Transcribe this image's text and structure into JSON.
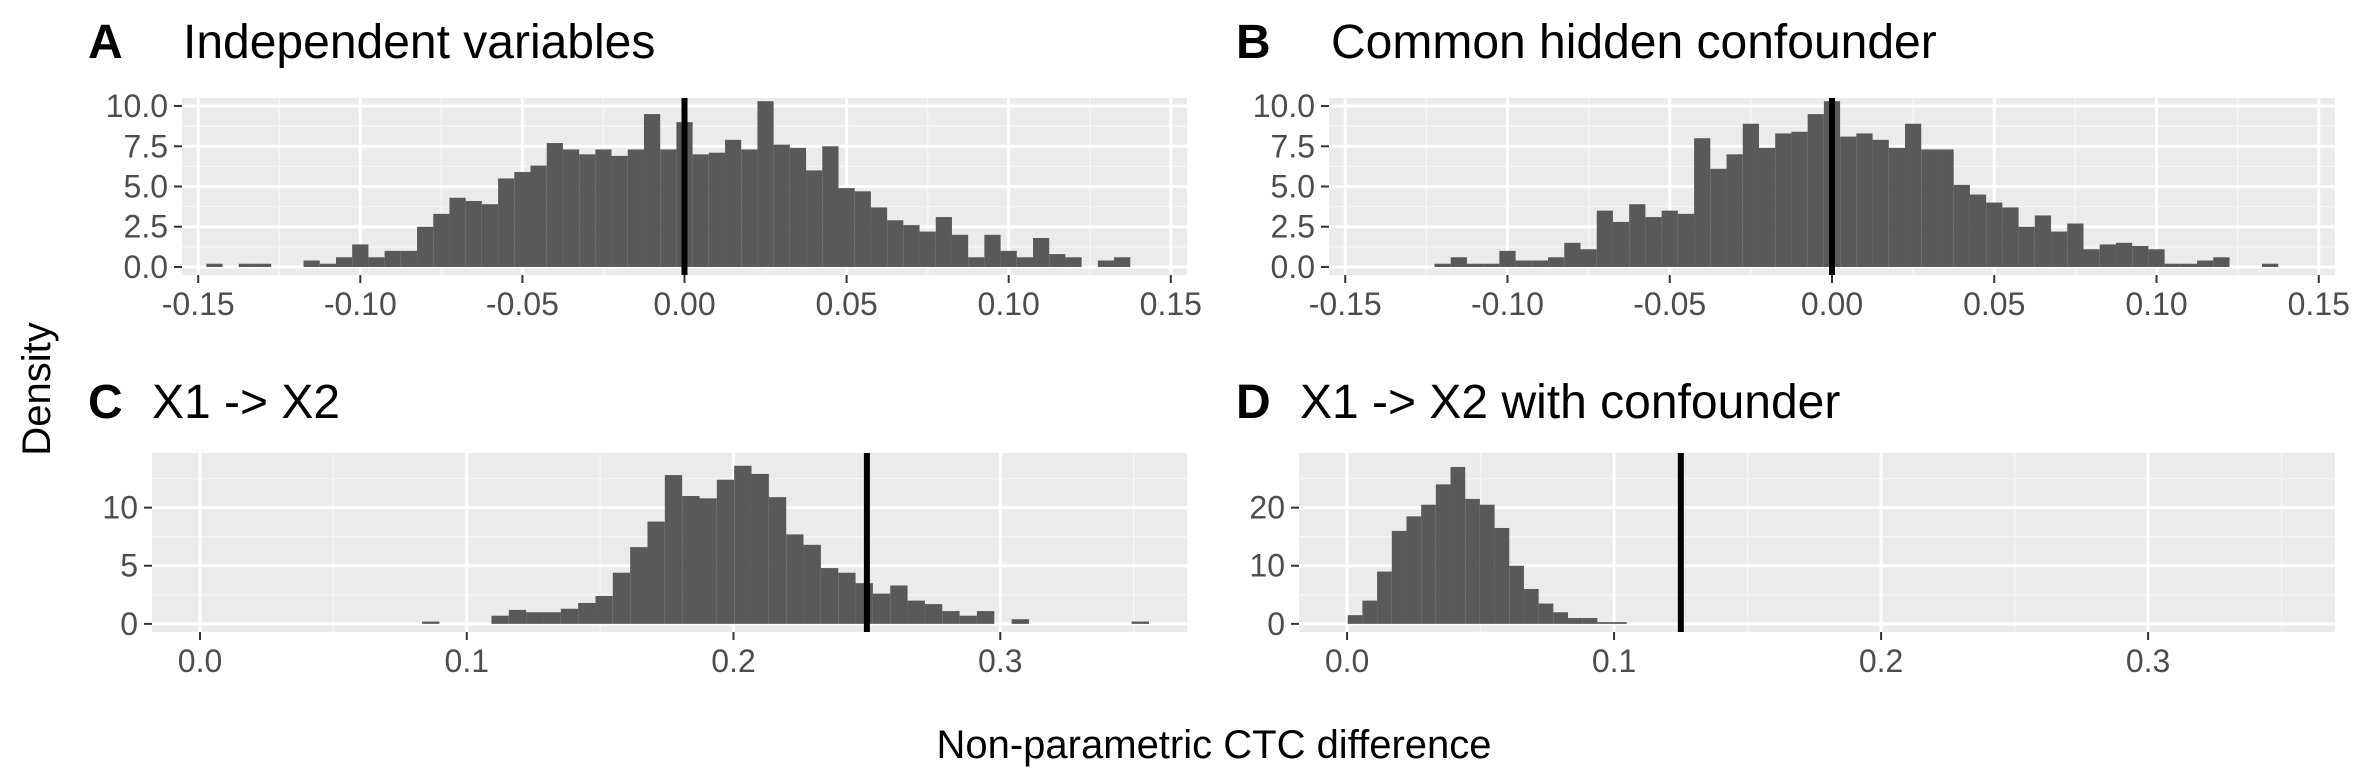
{
  "figure": {
    "y_axis_title": "Density",
    "x_axis_title": "Non-parametric CTC difference"
  },
  "chart_data": [
    {
      "type": "bar",
      "panel": "A",
      "title": "Independent variables",
      "bin_width": 0.005,
      "reference_line": 0.0,
      "xlim": [
        -0.155,
        0.155
      ],
      "ylim": [
        -0.5,
        10.5
      ],
      "xticks": [
        -0.15,
        -0.1,
        -0.05,
        0.0,
        0.05,
        0.1,
        0.15
      ],
      "xtick_labels": [
        "-0.15",
        "-0.10",
        "-0.05",
        "0.00",
        "0.05",
        "0.10",
        "0.15"
      ],
      "yticks": [
        0,
        2.5,
        5,
        7.5,
        10
      ],
      "ytick_labels": [
        "0.0",
        "2.5",
        "5.0",
        "7.5",
        "10.0"
      ],
      "x": [
        -0.145,
        -0.14,
        -0.135,
        -0.13,
        -0.125,
        -0.12,
        -0.115,
        -0.11,
        -0.105,
        -0.1,
        -0.095,
        -0.09,
        -0.085,
        -0.08,
        -0.075,
        -0.07,
        -0.065,
        -0.06,
        -0.055,
        -0.05,
        -0.045,
        -0.04,
        -0.035,
        -0.03,
        -0.025,
        -0.02,
        -0.015,
        -0.01,
        -0.005,
        0.0,
        0.005,
        0.01,
        0.015,
        0.02,
        0.025,
        0.03,
        0.035,
        0.04,
        0.045,
        0.05,
        0.055,
        0.06,
        0.065,
        0.07,
        0.075,
        0.08,
        0.085,
        0.09,
        0.095,
        0.1,
        0.105,
        0.11,
        0.115,
        0.12,
        0.125,
        0.13,
        0.135
      ],
      "values": [
        0.2,
        0,
        0.2,
        0.2,
        0,
        0,
        0.4,
        0.2,
        0.6,
        1.4,
        0.6,
        1.0,
        1.0,
        2.5,
        3.3,
        4.3,
        4.1,
        3.9,
        5.5,
        5.9,
        6.3,
        7.7,
        7.3,
        7.0,
        7.3,
        6.9,
        7.3,
        9.5,
        7.3,
        9.0,
        7.0,
        7.1,
        7.9,
        7.3,
        10.3,
        7.6,
        7.4,
        6.0,
        7.5,
        4.9,
        4.7,
        3.7,
        2.9,
        2.6,
        2.2,
        3.1,
        2.0,
        0.6,
        2.0,
        1.0,
        0.6,
        1.8,
        0.8,
        0.6,
        0,
        0.4,
        0.6
      ]
    },
    {
      "type": "bar",
      "panel": "B",
      "title": "Common hidden confounder",
      "bin_width": 0.005,
      "reference_line": 0.0,
      "xlim": [
        -0.155,
        0.155
      ],
      "ylim": [
        -0.5,
        10.5
      ],
      "xticks": [
        -0.15,
        -0.1,
        -0.05,
        0.0,
        0.05,
        0.1,
        0.15
      ],
      "xtick_labels": [
        "-0.15",
        "-0.10",
        "-0.05",
        "0.00",
        "0.05",
        "0.10",
        "0.15"
      ],
      "yticks": [
        0,
        2.5,
        5,
        7.5,
        10
      ],
      "ytick_labels": [
        "0.0",
        "2.5",
        "5.0",
        "7.5",
        "10.0"
      ],
      "x": [
        -0.12,
        -0.115,
        -0.11,
        -0.105,
        -0.1,
        -0.095,
        -0.09,
        -0.085,
        -0.08,
        -0.075,
        -0.07,
        -0.065,
        -0.06,
        -0.055,
        -0.05,
        -0.045,
        -0.04,
        -0.035,
        -0.03,
        -0.025,
        -0.02,
        -0.015,
        -0.01,
        -0.005,
        0.0,
        0.005,
        0.01,
        0.015,
        0.02,
        0.025,
        0.03,
        0.035,
        0.04,
        0.045,
        0.05,
        0.055,
        0.06,
        0.065,
        0.07,
        0.075,
        0.08,
        0.085,
        0.09,
        0.095,
        0.1,
        0.105,
        0.11,
        0.115,
        0.12,
        0.125,
        0.13,
        0.135
      ],
      "values": [
        0.2,
        0.6,
        0.2,
        0.2,
        1.0,
        0.4,
        0.4,
        0.6,
        1.5,
        1.1,
        3.5,
        2.8,
        3.9,
        3.1,
        3.5,
        3.3,
        8.0,
        6.1,
        7.0,
        8.9,
        7.4,
        8.3,
        8.4,
        9.5,
        10.3,
        8.1,
        8.3,
        7.9,
        7.4,
        8.9,
        7.3,
        7.3,
        5.1,
        4.5,
        4.0,
        3.7,
        2.5,
        3.2,
        2.2,
        2.7,
        1.1,
        1.4,
        1.5,
        1.3,
        1.1,
        0.2,
        0.2,
        0.4,
        0.6,
        0,
        0,
        0.2
      ]
    },
    {
      "type": "bar",
      "panel": "C",
      "title": "X1 -> X2",
      "bin_width": 0.0065,
      "reference_line": 0.25,
      "xlim": [
        -0.018,
        0.37
      ],
      "ylim": [
        -0.7,
        14.7
      ],
      "xticks": [
        0.0,
        0.1,
        0.2,
        0.3
      ],
      "xtick_labels": [
        "0.0",
        "0.1",
        "0.2",
        "0.3"
      ],
      "yticks": [
        0,
        5,
        10
      ],
      "ytick_labels": [
        "0",
        "5",
        "10"
      ],
      "x": [
        0.0865,
        0.1125,
        0.119,
        0.1255,
        0.132,
        0.1385,
        0.145,
        0.1515,
        0.158,
        0.1645,
        0.171,
        0.1775,
        0.184,
        0.1905,
        0.197,
        0.2035,
        0.21,
        0.2165,
        0.223,
        0.2295,
        0.236,
        0.2425,
        0.249,
        0.2555,
        0.262,
        0.2685,
        0.275,
        0.2815,
        0.288,
        0.2945,
        0.3075,
        0.3525
      ],
      "values": [
        0.2,
        0.7,
        1.2,
        1.0,
        1.0,
        1.3,
        1.8,
        2.4,
        4.4,
        6.6,
        8.8,
        12.8,
        11.0,
        10.8,
        12.4,
        13.6,
        12.9,
        10.9,
        7.7,
        6.8,
        4.8,
        4.4,
        3.5,
        2.6,
        3.3,
        2.0,
        1.7,
        1.1,
        0.7,
        1.1,
        0.4,
        0.2
      ]
    },
    {
      "type": "bar",
      "panel": "D",
      "title": "X1 -> X2 with confounder",
      "bin_width": 0.0055,
      "reference_line": 0.125,
      "xlim": [
        -0.018,
        0.37
      ],
      "ylim": [
        -1.4,
        29.4
      ],
      "xticks": [
        0.0,
        0.1,
        0.2,
        0.3
      ],
      "xtick_labels": [
        "0.0",
        "0.1",
        "0.2",
        "0.3"
      ],
      "yticks": [
        0,
        10,
        20
      ],
      "ytick_labels": [
        "0",
        "10",
        "20"
      ],
      "x": [
        0.003,
        0.0085,
        0.014,
        0.0195,
        0.025,
        0.0305,
        0.036,
        0.0415,
        0.047,
        0.0525,
        0.058,
        0.0635,
        0.069,
        0.0745,
        0.08,
        0.0855,
        0.091,
        0.0965,
        0.102
      ],
      "values": [
        1.5,
        4.0,
        9.0,
        16.0,
        18.5,
        20.5,
        24.0,
        27.0,
        21.5,
        20.5,
        16.5,
        10.0,
        6.0,
        3.5,
        2.0,
        1.0,
        1.0,
        0.3,
        0.3
      ]
    }
  ]
}
